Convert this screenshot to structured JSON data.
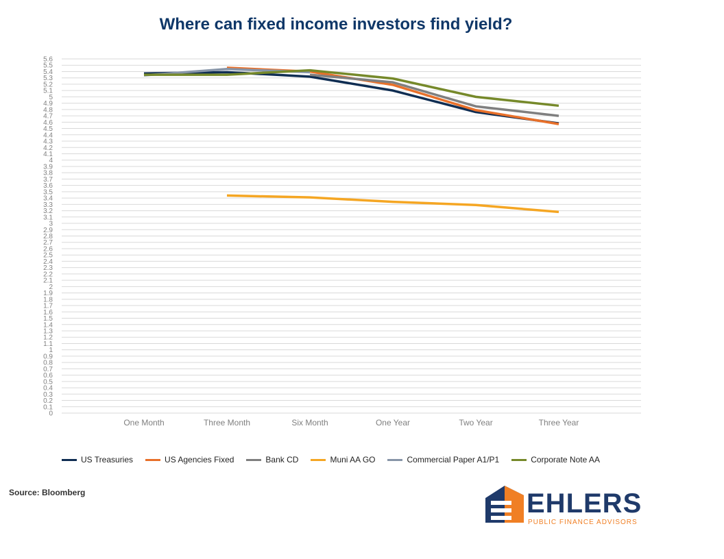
{
  "title": "Where can fixed income investors find yield?",
  "source": "Source: Bloomberg",
  "logo": {
    "name": "EHLERS",
    "tagline": "PUBLIC FINANCE ADVISORS",
    "colors": {
      "navy": "#1f3a6a",
      "orange": "#f07f24"
    }
  },
  "chart_data": {
    "type": "line",
    "title": "Where can fixed income investors find yield?",
    "xlabel": "",
    "ylabel": "",
    "ylim": [
      0,
      5.6
    ],
    "ytick_step": 0.1,
    "grid": true,
    "legend_position": "bottom",
    "categories": [
      "One Month",
      "Three Month",
      "Six Month",
      "One Year",
      "Two Year",
      "Three Year"
    ],
    "series": [
      {
        "name": "US Treasuries",
        "color": "#0f2d52",
        "values": [
          5.37,
          5.39,
          5.32,
          5.1,
          4.76,
          4.58
        ]
      },
      {
        "name": "US Agencies Fixed",
        "color": "#e8702a",
        "values": [
          null,
          5.46,
          5.4,
          5.19,
          4.79,
          4.57
        ]
      },
      {
        "name": "Bank CD",
        "color": "#7f7f7f",
        "values": [
          null,
          null,
          5.35,
          5.23,
          4.85,
          4.7
        ]
      },
      {
        "name": "Muni AA GO",
        "color": "#f5a623",
        "values": [
          null,
          3.44,
          3.41,
          3.34,
          3.29,
          3.18
        ]
      },
      {
        "name": "Commercial Paper A1/P1",
        "color": "#8795a8",
        "values": [
          5.34,
          5.44,
          5.39,
          null,
          null,
          null
        ]
      },
      {
        "name": "Corporate Note AA",
        "color": "#76892a",
        "values": [
          5.35,
          5.35,
          5.42,
          5.29,
          5.0,
          4.86
        ]
      }
    ]
  }
}
